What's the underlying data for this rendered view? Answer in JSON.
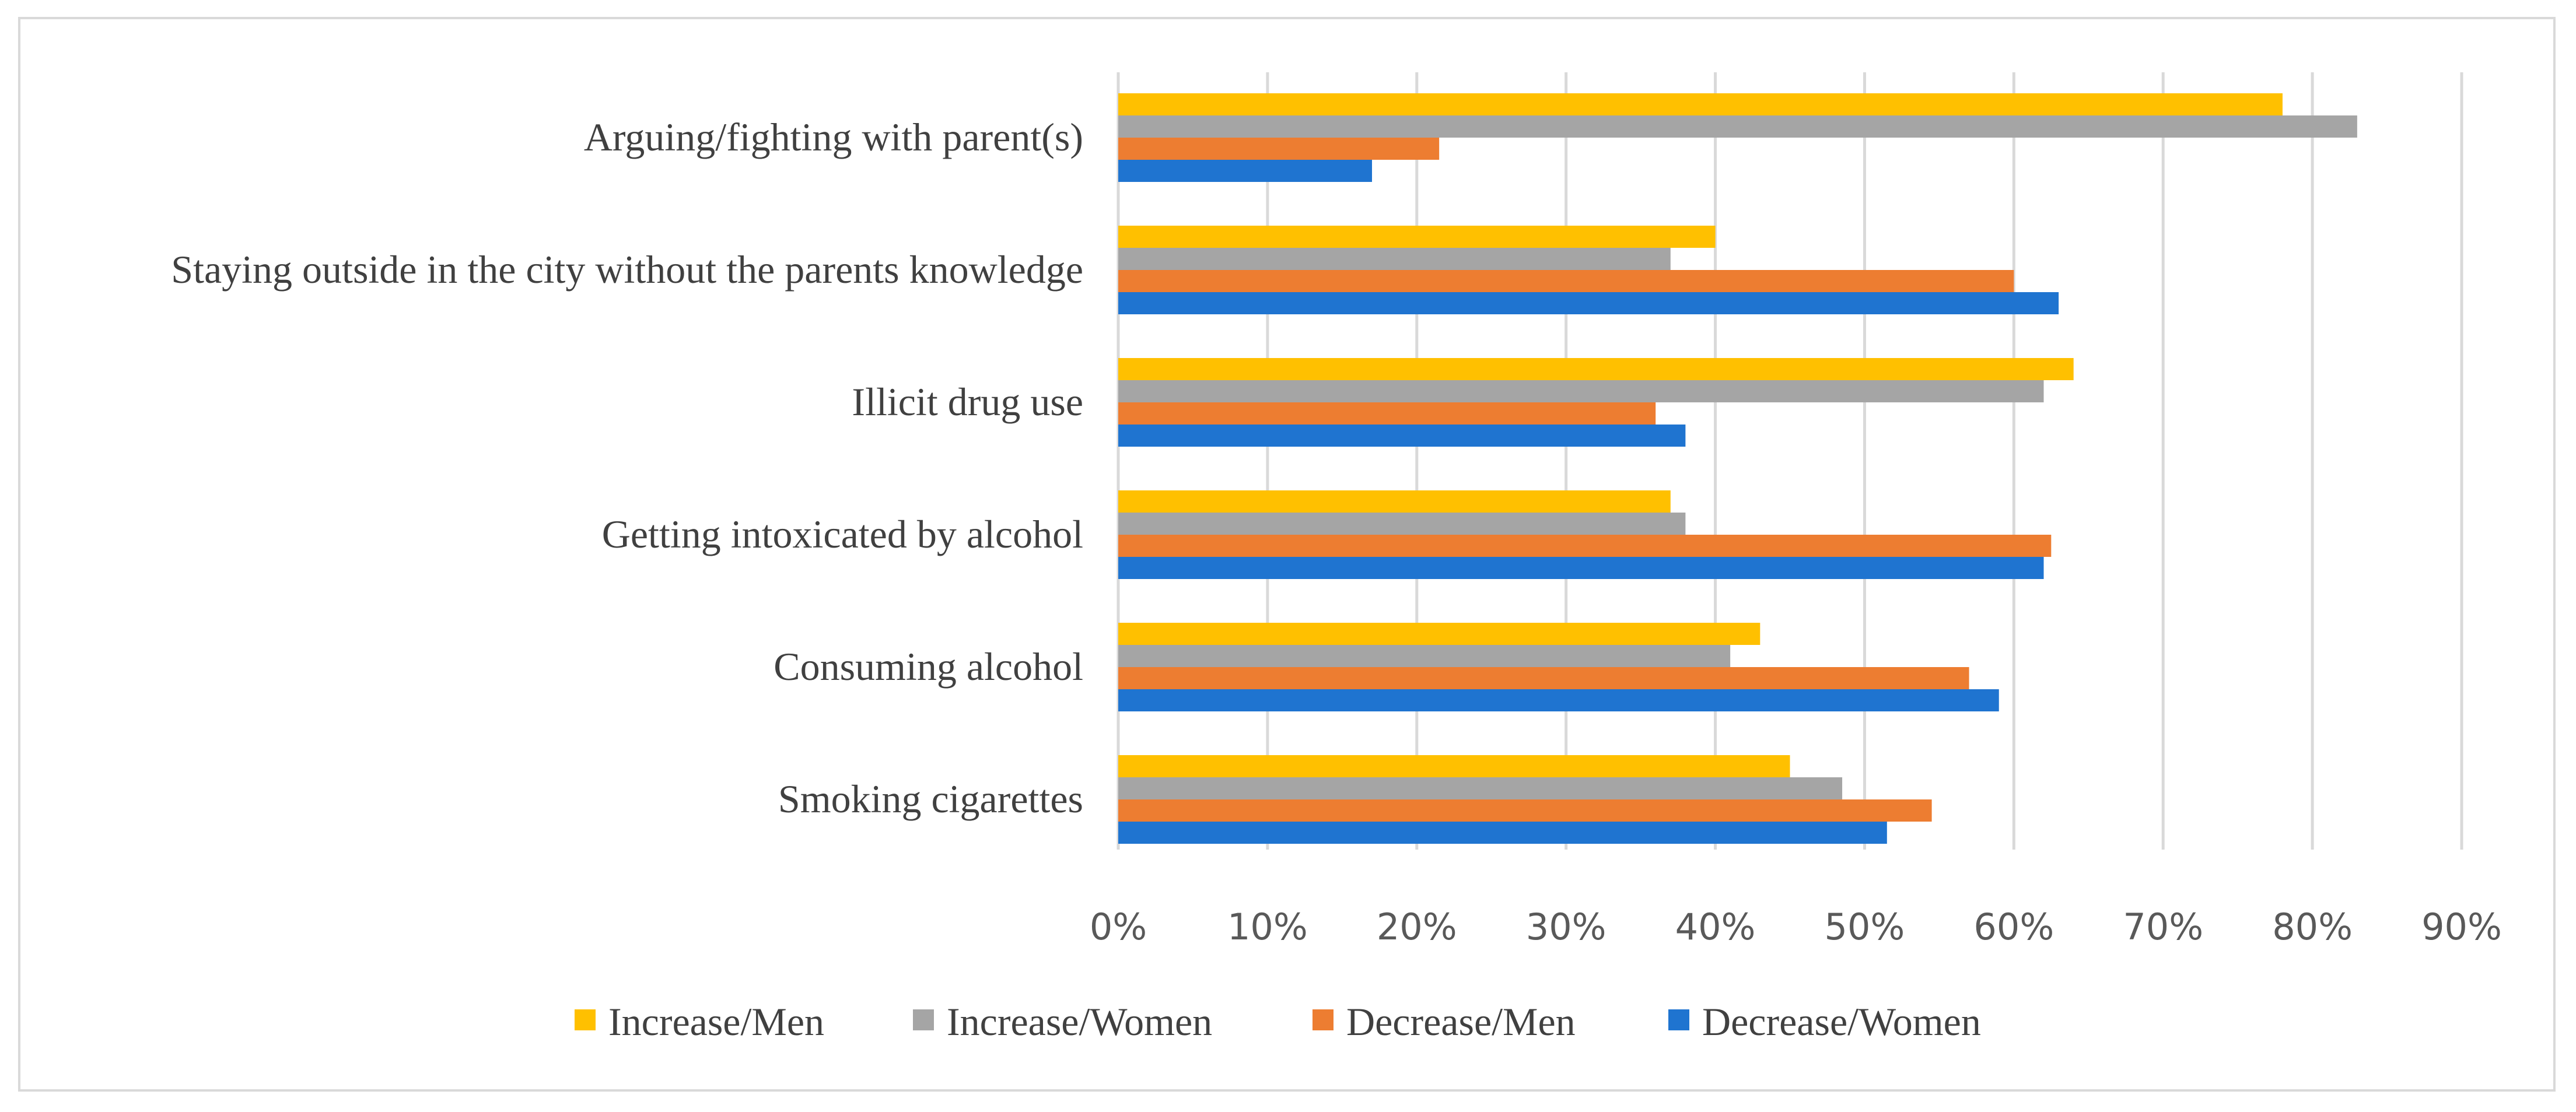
{
  "chart_data": {
    "type": "bar",
    "orientation": "horizontal",
    "title": "",
    "xlabel": "",
    "ylabel": "",
    "xlim": [
      0,
      90
    ],
    "x_ticks": [
      "0%",
      "10%",
      "20%",
      "30%",
      "40%",
      "50%",
      "60%",
      "70%",
      "80%",
      "90%"
    ],
    "grid": true,
    "legend_position": "bottom",
    "categories": [
      "Arguing/fighting with parent(s)",
      "Staying outside in the city without the parents knowledge",
      "Illicit drug use",
      "Getting intoxicated by alcohol",
      "Consuming alcohol",
      "Smoking cigarettes"
    ],
    "series": [
      {
        "name": "Increase/Men",
        "color": "#ffc000",
        "values": [
          78,
          40,
          64,
          37,
          43,
          45
        ]
      },
      {
        "name": "Increase/Women",
        "color": "#a5a5a5",
        "values": [
          83,
          37,
          62,
          38,
          41,
          48.5
        ]
      },
      {
        "name": "Decrease/Men",
        "color": "#ed7d31",
        "values": [
          21.5,
          60,
          36,
          62.5,
          57,
          54.5
        ]
      },
      {
        "name": "Decrease/Women",
        "color": "#1f74d0",
        "values": [
          17,
          63,
          38,
          62,
          59,
          51.5
        ]
      }
    ]
  }
}
